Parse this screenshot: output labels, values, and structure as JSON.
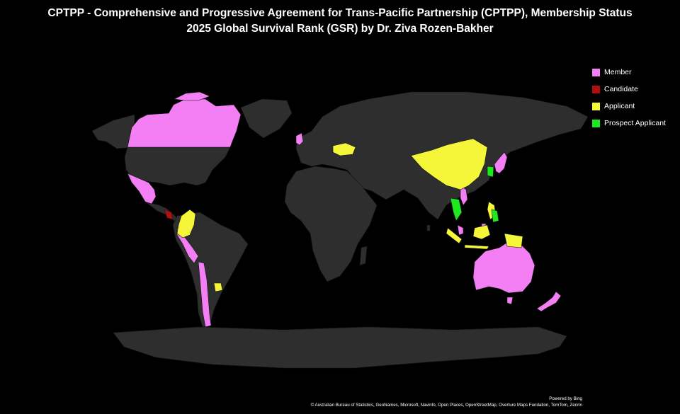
{
  "title": {
    "line1": "CPTPP - Comprehensive and Progressive Agreement for Trans-Pacific Partnership (CPTPP), Membership Status",
    "line2": "2025 Global Survival Rank (GSR) by Dr. Ziva Rozen-Bakher"
  },
  "colors": {
    "land": "#2e2e2e",
    "border": "#141414",
    "member": "#f47ff4",
    "candidate": "#b10f0f",
    "applicant": "#f5f53a",
    "prospect": "#1ee81e"
  },
  "legend": [
    {
      "label": "Member",
      "color": "#f47ff4"
    },
    {
      "label": "Candidate",
      "color": "#b10f0f"
    },
    {
      "label": "Applicant",
      "color": "#f5f53a"
    },
    {
      "label": "Prospect Applicant",
      "color": "#1ee81e"
    }
  ],
  "attribution": {
    "powered": "Powered by Bing",
    "sources": "© Australian Bureau of Statistics, GeoNames, Microsoft, Navinfo, Open Places, OpenStreetMap, Overture Maps Fundation, TomTom, Zenrin"
  }
}
